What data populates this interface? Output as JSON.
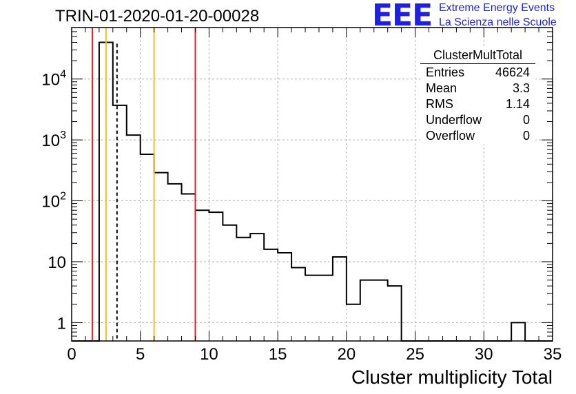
{
  "page": {
    "title": "TRIN-01-2020-01-20-00028",
    "logo": "EEE",
    "brand_line1": "Extreme Energy Events",
    "brand_line2": "La Scienza nelle Scuole"
  },
  "stats": {
    "name": "ClusterMultTotal",
    "rows": [
      {
        "label": "Entries",
        "value": "46624"
      },
      {
        "label": "Mean",
        "value": "3.3"
      },
      {
        "label": "RMS",
        "value": "1.14"
      },
      {
        "label": "Underflow",
        "value": "0"
      },
      {
        "label": "Overflow",
        "value": "0"
      }
    ]
  },
  "chart_data": {
    "type": "histogram",
    "title": "TRIN-01-2020-01-20-00028",
    "xlabel": "Cluster multiplicity Total",
    "ylabel": "",
    "xlim": [
      0,
      35
    ],
    "ylim": [
      0.5,
      70000
    ],
    "log_y": true,
    "grid": true,
    "x_ticks": [
      0,
      5,
      10,
      15,
      20,
      25,
      30,
      35
    ],
    "y_ticks": [
      {
        "value": 1,
        "label": "1"
      },
      {
        "value": 10,
        "label": "10"
      },
      {
        "value": 100,
        "label": "10",
        "exp": "2"
      },
      {
        "value": 1000,
        "label": "10",
        "exp": "3"
      },
      {
        "value": 10000,
        "label": "10",
        "exp": "4"
      }
    ],
    "bin_edges": [
      0,
      1,
      2,
      3,
      4,
      5,
      6,
      7,
      8,
      9,
      10,
      11,
      12,
      13,
      14,
      15,
      16,
      17,
      18,
      19,
      20,
      21,
      22,
      23,
      24,
      25,
      26,
      27,
      28,
      29,
      30,
      31,
      32,
      33,
      34,
      35
    ],
    "counts": [
      0,
      0,
      40000,
      3700,
      1200,
      580,
      290,
      190,
      130,
      70,
      65,
      40,
      25,
      29,
      16,
      14,
      8,
      6,
      6,
      12,
      2,
      5,
      5,
      4,
      0,
      0,
      0,
      0,
      0,
      0,
      0,
      0,
      1,
      0,
      0
    ],
    "mean_line": 3.3,
    "vertical_lines": [
      {
        "x": 1.5,
        "color": "#e02020"
      },
      {
        "x": 2.5,
        "color": "#f0c020"
      },
      {
        "x": 6.0,
        "color": "#f0c020"
      },
      {
        "x": 9.0,
        "color": "#e02020"
      }
    ]
  }
}
